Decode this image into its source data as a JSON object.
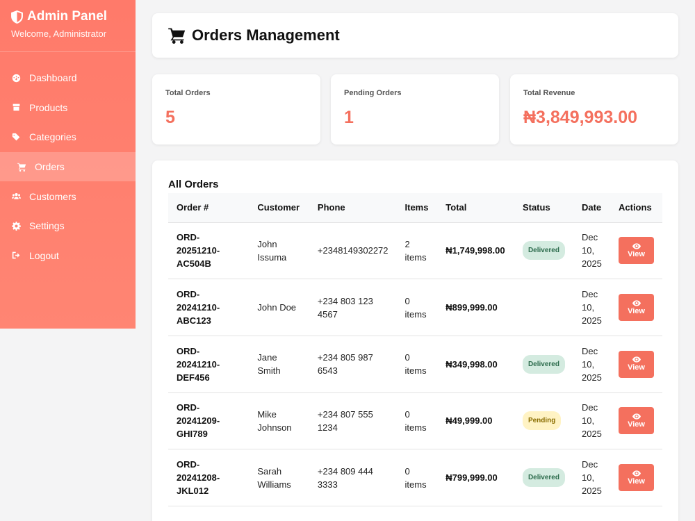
{
  "brand": {
    "title": "Admin Panel",
    "subtitle": "Welcome, Administrator",
    "icon": "shield-icon"
  },
  "nav": [
    {
      "label": "Dashboard",
      "icon": "dashboard-icon"
    },
    {
      "label": "Products",
      "icon": "box-icon"
    },
    {
      "label": "Categories",
      "icon": "tags-icon"
    },
    {
      "label": "Orders",
      "icon": "cart-icon",
      "active": true
    },
    {
      "label": "Customers",
      "icon": "users-icon"
    },
    {
      "label": "Settings",
      "icon": "gear-icon"
    },
    {
      "label": "Logout",
      "icon": "logout-icon"
    }
  ],
  "header": {
    "title": "Orders Management",
    "icon": "cart-icon"
  },
  "stats": [
    {
      "label": "Total Orders",
      "value": "5"
    },
    {
      "label": "Pending Orders",
      "value": "1"
    },
    {
      "label": "Total Revenue",
      "value": "₦3,849,993.00"
    }
  ],
  "orders": {
    "title": "All Orders",
    "columns": [
      "Order #",
      "Customer",
      "Phone",
      "Items",
      "Total",
      "Status",
      "Date",
      "Actions"
    ],
    "view_label": "View",
    "rows": [
      {
        "id_line1": "ORD-20251210-",
        "id_line2": "AC504B",
        "customer_line1": "John",
        "customer_line2": "Issuma",
        "phone_line1": "+2348149302272",
        "phone_line2": "",
        "items_line1": "2",
        "items_line2": "items",
        "total": "₦1,749,998.00",
        "status": "Delivered",
        "date_line1": "Dec",
        "date_line2": "10,",
        "date_line3": "2025"
      },
      {
        "id_line1": "ORD-20241210-",
        "id_line2": "ABC123",
        "customer_line1": "John Doe",
        "customer_line2": "",
        "phone_line1": "+234 803 123",
        "phone_line2": "4567",
        "items_line1": "0",
        "items_line2": "items",
        "total": "₦899,999.00",
        "status": "",
        "date_line1": "Dec",
        "date_line2": "10,",
        "date_line3": "2025"
      },
      {
        "id_line1": "ORD-20241210-",
        "id_line2": "DEF456",
        "customer_line1": "Jane",
        "customer_line2": "Smith",
        "phone_line1": "+234 805 987",
        "phone_line2": "6543",
        "items_line1": "0",
        "items_line2": "items",
        "total": "₦349,998.00",
        "status": "Delivered",
        "date_line1": "Dec",
        "date_line2": "10,",
        "date_line3": "2025"
      },
      {
        "id_line1": "ORD-20241209-",
        "id_line2": "GHI789",
        "customer_line1": "Mike",
        "customer_line2": "Johnson",
        "phone_line1": "+234 807 555",
        "phone_line2": "1234",
        "items_line1": "0",
        "items_line2": "items",
        "total": "₦49,999.00",
        "status": "Pending",
        "date_line1": "Dec",
        "date_line2": "10,",
        "date_line3": "2025"
      },
      {
        "id_line1": "ORD-20241208-",
        "id_line2": "JKL012",
        "customer_line1": "Sarah",
        "customer_line2": "Williams",
        "phone_line1": "+234 809 444",
        "phone_line2": "3333",
        "items_line1": "0",
        "items_line2": "items",
        "total": "₦799,999.00",
        "status": "Delivered",
        "date_line1": "Dec",
        "date_line2": "10,",
        "date_line3": "2025"
      }
    ]
  },
  "colors": {
    "accent": "#f4705e",
    "sidebar": "#ff7a6a",
    "delivered_bg": "#d4ebe0",
    "pending_bg": "#fff3c4"
  }
}
